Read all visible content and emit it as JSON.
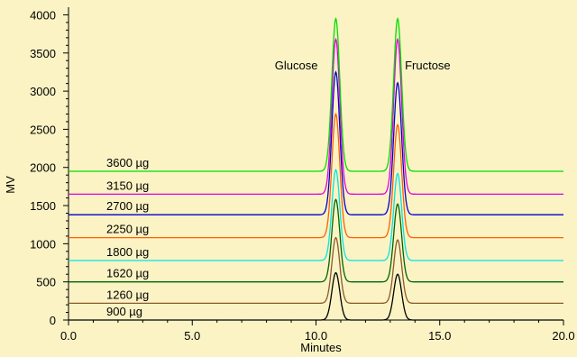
{
  "chart_data": {
    "type": "line",
    "title": "",
    "xlabel": "Minutes",
    "ylabel": "MV",
    "xlim": [
      0,
      20
    ],
    "ylim": [
      0,
      4100
    ],
    "grid": false,
    "background": "#fbf3c4",
    "x_ticks": [
      {
        "value": 0,
        "label": "0.0"
      },
      {
        "value": 5,
        "label": "5.0"
      },
      {
        "value": 10,
        "label": "10.0"
      },
      {
        "value": 15,
        "label": "15.0"
      },
      {
        "value": 20,
        "label": "20.0"
      }
    ],
    "y_ticks": [
      {
        "value": 0,
        "label": "0"
      },
      {
        "value": 500,
        "label": "500"
      },
      {
        "value": 1000,
        "label": "1000"
      },
      {
        "value": 1500,
        "label": "1500"
      },
      {
        "value": 2000,
        "label": "2000"
      },
      {
        "value": 2500,
        "label": "2500"
      },
      {
        "value": 3000,
        "label": "3000"
      },
      {
        "value": 3500,
        "label": "3500"
      },
      {
        "value": 4000,
        "label": "4000"
      }
    ],
    "peaks": [
      {
        "name": "Glucose",
        "retention_time_min": 10.8
      },
      {
        "name": "Fructose",
        "retention_time_min": 13.3
      }
    ],
    "series": [
      {
        "name": "900 µg",
        "color": "#000000",
        "baseline": 0,
        "glucose_apex": 620,
        "fructose_apex": 600
      },
      {
        "name": "1260 µg",
        "color": "#8b5a2b",
        "baseline": 220,
        "glucose_apex": 1080,
        "fructose_apex": 1050
      },
      {
        "name": "1620 µg",
        "color": "#006400",
        "baseline": 500,
        "glucose_apex": 1580,
        "fructose_apex": 1520
      },
      {
        "name": "1800 µg",
        "color": "#00e5e5",
        "baseline": 780,
        "glucose_apex": 1970,
        "fructose_apex": 1920
      },
      {
        "name": "2250 µg",
        "color": "#ff6000",
        "baseline": 1080,
        "glucose_apex": 2700,
        "fructose_apex": 2560
      },
      {
        "name": "2700 µg",
        "color": "#0000cc",
        "baseline": 1380,
        "glucose_apex": 3250,
        "fructose_apex": 3110
      },
      {
        "name": "3150 µg",
        "color": "#e000e0",
        "baseline": 1650,
        "glucose_apex": 3680,
        "fructose_apex": 3680
      },
      {
        "name": "3600 µg",
        "color": "#00dd00",
        "baseline": 1950,
        "glucose_apex": 3950,
        "fructose_apex": 3950
      }
    ]
  }
}
